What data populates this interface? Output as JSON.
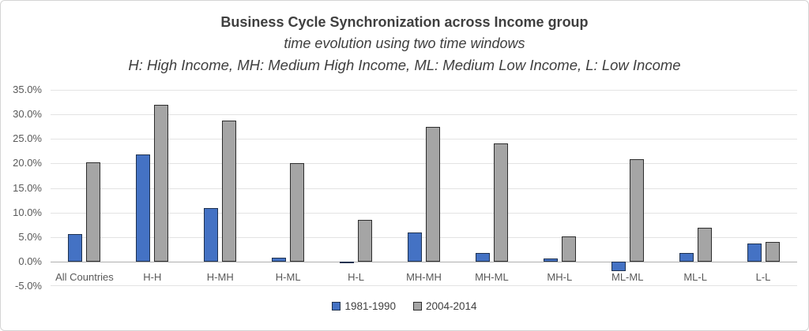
{
  "header": {
    "title": "Business Cycle Synchronization across Income group",
    "subtitle": "time evolution using two time windows",
    "note": "H: High Income, MH: Medium High Income, ML: Medium Low Income, L: Low Income"
  },
  "chart_data": {
    "type": "bar",
    "title": "Business Cycle Synchronization across Income group",
    "subtitle": "time evolution using two time windows",
    "note": "H: High Income, MH: Medium High Income, ML: Medium Low Income, L: Low Income",
    "categories": [
      "All Countries",
      "H-H",
      "H-MH",
      "H-ML",
      "H-L",
      "MH-MH",
      "MH-ML",
      "MH-L",
      "ML-ML",
      "ML-L",
      "L-L"
    ],
    "series": [
      {
        "name": "1981-1990",
        "color": "#4472C4",
        "border_color": "#1F3250",
        "values": [
          5.6,
          21.9,
          10.9,
          0.8,
          -0.4,
          6.0,
          1.8,
          0.6,
          -2.0,
          1.8,
          3.7
        ]
      },
      {
        "name": "2004-2014",
        "color": "#A5A5A5",
        "border_color": "#2E2E2E",
        "values": [
          20.2,
          32.0,
          28.8,
          20.0,
          8.5,
          27.4,
          24.0,
          5.2,
          20.8,
          6.9,
          4.0
        ]
      }
    ],
    "values_unit": "percent",
    "xlabel": "",
    "ylabel": "",
    "ylim": [
      -5,
      35
    ],
    "yticks": [
      35,
      30,
      25,
      20,
      15,
      10,
      5,
      0,
      -5
    ],
    "ytick_labels": [
      "35.0%",
      "30.0%",
      "25.0%",
      "20.0%",
      "15.0%",
      "10.0%",
      "5.0%",
      "0.0%",
      "-5.0%"
    ],
    "grid": true,
    "legend_position": "bottom"
  },
  "colors": {
    "background": "#FFFFFF",
    "panel_border": "#D4D4D4",
    "gridline": "#E3E3E3",
    "axis_line": "#AEAEAE",
    "title_text": "#3F3F3F",
    "axis_text": "#595959"
  }
}
